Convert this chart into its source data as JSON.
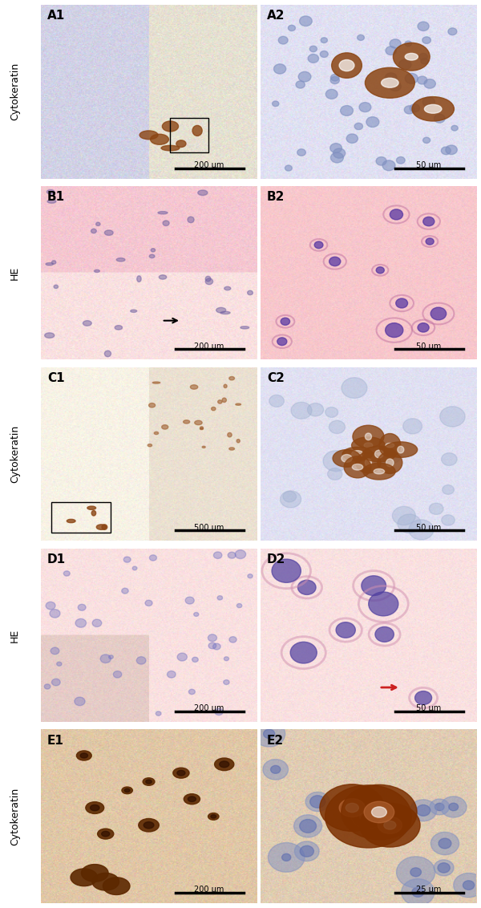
{
  "figure_width": 6.0,
  "figure_height": 11.32,
  "dpi": 100,
  "rows": 5,
  "cols": 2,
  "panel_labels": [
    "A1",
    "A2",
    "B1",
    "B2",
    "C1",
    "C2",
    "D1",
    "D2",
    "E1",
    "E2"
  ],
  "row_labels": [
    "Cytokeratin",
    "HE",
    "Cytokeratin",
    "HE",
    "Cytokeratin"
  ],
  "scale_bar_texts": [
    "200 μm",
    "50 μm",
    "200 μm",
    "50 μm",
    "500 μm",
    "50 μm",
    "200 μm",
    "50 μm",
    "200 μm",
    "25 μm"
  ],
  "label_color": "#000000",
  "scalebar_color": "#000000"
}
